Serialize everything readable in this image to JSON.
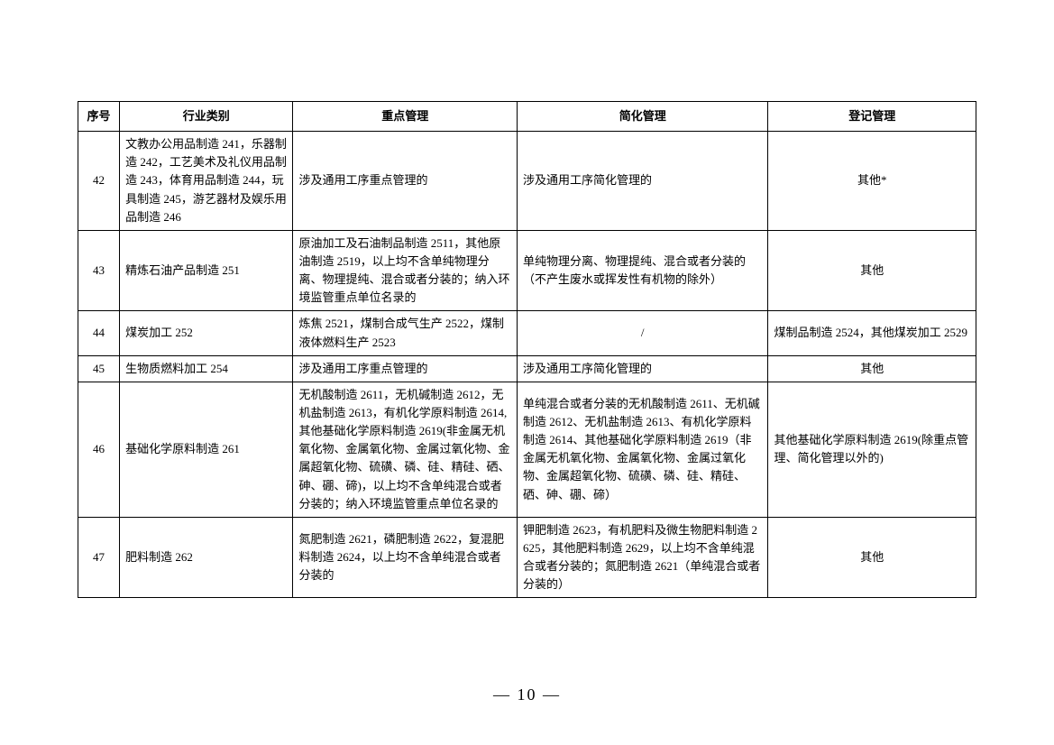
{
  "table": {
    "columns": [
      "序号",
      "行业类别",
      "重点管理",
      "简化管理",
      "登记管理"
    ],
    "rows": [
      {
        "num": "42",
        "category": "文教办公用品制造 241，乐器制造 242，工艺美术及礼仪用品制造 243，体育用品制造 244，玩具制造 245，游艺器材及娱乐用品制造 246",
        "key": "涉及通用工序重点管理的",
        "simplified": "涉及通用工序简化管理的",
        "registration": "其他*",
        "regAlign": "center"
      },
      {
        "num": "43",
        "category": "精炼石油产品制造 251",
        "key": "原油加工及石油制品制造 2511，其他原油制造 2519，以上均不含单纯物理分离、物理提纯、混合或者分装的；纳入环境监管重点单位名录的",
        "simplified": "单纯物理分离、物理提纯、混合或者分装的（不产生废水或挥发性有机物的除外）",
        "registration": "其他",
        "regAlign": "center"
      },
      {
        "num": "44",
        "category": "煤炭加工 252",
        "key": "炼焦 2521，煤制合成气生产 2522，煤制液体燃料生产 2523",
        "simplified": "/",
        "simpAlign": "center",
        "registration": "煤制品制造 2524，其他煤炭加工 2529",
        "regAlign": "left"
      },
      {
        "num": "45",
        "category": "生物质燃料加工 254",
        "key": "涉及通用工序重点管理的",
        "simplified": "涉及通用工序简化管理的",
        "registration": "其他",
        "regAlign": "center"
      },
      {
        "num": "46",
        "category": "基础化学原料制造 261",
        "key": "无机酸制造 2611，无机碱制造 2612，无机盐制造 2613，有机化学原料制造 2614,其他基础化学原料制造 2619(非金属无机氧化物、金属氧化物、金属过氧化物、金属超氧化物、硫磺、磷、硅、精硅、硒、砷、硼、碲)，以上均不含单纯混合或者分装的；纳入环境监管重点单位名录的",
        "simplified": "单纯混合或者分装的无机酸制造 2611、无机碱制造 2612、无机盐制造 2613、有机化学原料制造 2614、其他基础化学原料制造 2619（非金属无机氧化物、金属氧化物、金属过氧化物、金属超氧化物、硫磺、磷、硅、精硅、硒、砷、硼、碲）",
        "registration": "其他基础化学原料制造 2619(除重点管理、简化管理以外的)",
        "regAlign": "left"
      },
      {
        "num": "47",
        "category": "肥料制造 262",
        "key": "氮肥制造 2621，磷肥制造 2622，复混肥料制造 2624，以上均不含单纯混合或者分装的",
        "simplified": "钾肥制造 2623，有机肥料及微生物肥料制造 2625，其他肥料制造 2629，以上均不含单纯混合或者分装的；氮肥制造 2621（单纯混合或者分装的）",
        "registration": "其他",
        "regAlign": "center"
      }
    ]
  },
  "pageNumber": "— 10 —",
  "style": {
    "font_family": "SimSun",
    "font_size_cell": 13,
    "font_size_page_num": 18,
    "border_color": "#000000",
    "background": "#ffffff"
  }
}
